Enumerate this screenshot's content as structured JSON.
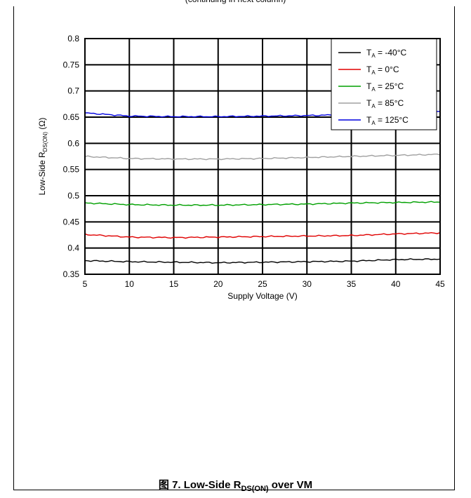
{
  "top_caption": "(continuing in next column)",
  "figure_caption": {
    "prefix": "图 7.  Low-Side R",
    "subscript": "DS(ON)",
    "suffix": " over VM"
  },
  "chart_data": {
    "type": "line",
    "title": "",
    "xlabel": "Supply Voltage (V)",
    "ylabel": {
      "main": "Low-Side R",
      "sub": "DS(ON)",
      "suffix": " (Ω)"
    },
    "xlim": [
      5,
      45
    ],
    "ylim": [
      0.35,
      0.8
    ],
    "x_ticks": [
      "5",
      "10",
      "15",
      "20",
      "25",
      "30",
      "35",
      "40",
      "45"
    ],
    "y_ticks": [
      "0.35",
      "0.4",
      "0.45",
      "0.5",
      "0.55",
      "0.6",
      "0.65",
      "0.7",
      "0.75",
      "0.8"
    ],
    "grid": true,
    "legend_position": "top-right",
    "x": [
      5,
      10,
      15,
      20,
      25,
      30,
      35,
      40,
      45
    ],
    "series": [
      {
        "name_prefix": "T",
        "name_sub": "A",
        "name_suffix": " = -40°C",
        "color": "#000000",
        "values": [
          0.376,
          0.374,
          0.373,
          0.372,
          0.373,
          0.374,
          0.375,
          0.378,
          0.379
        ]
      },
      {
        "name_prefix": "T",
        "name_sub": "A",
        "name_suffix": " = 0°C",
        "color": "#e00000",
        "values": [
          0.426,
          0.421,
          0.42,
          0.421,
          0.422,
          0.423,
          0.424,
          0.427,
          0.429
        ]
      },
      {
        "name_prefix": "T",
        "name_sub": "A",
        "name_suffix": " = 25°C",
        "color": "#00a000",
        "values": [
          0.486,
          0.483,
          0.482,
          0.482,
          0.483,
          0.484,
          0.486,
          0.487,
          0.488
        ]
      },
      {
        "name_prefix": "T",
        "name_sub": "A",
        "name_suffix": " = 85°C",
        "color": "#a0a0a0",
        "values": [
          0.575,
          0.571,
          0.57,
          0.57,
          0.571,
          0.573,
          0.575,
          0.577,
          0.579
        ]
      },
      {
        "name_prefix": "T",
        "name_sub": "A",
        "name_suffix": " = 125°C",
        "color": "#0000e0",
        "values": [
          0.658,
          0.652,
          0.651,
          0.651,
          0.652,
          0.653,
          0.655,
          0.658,
          0.661
        ]
      }
    ]
  }
}
